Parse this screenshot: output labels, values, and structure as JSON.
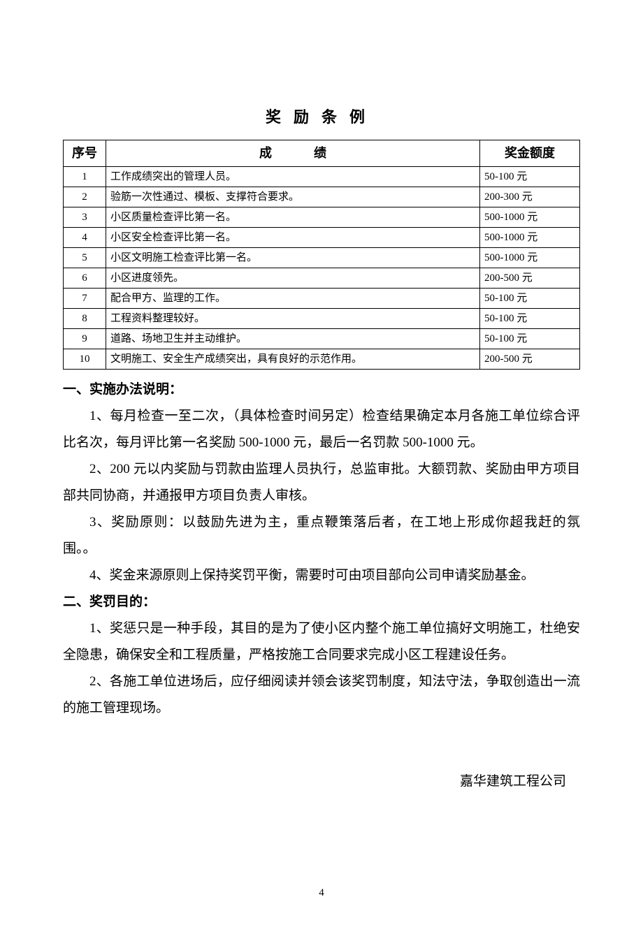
{
  "title": "奖励条例",
  "table": {
    "headers": {
      "idx": "序号",
      "achv": "成绩",
      "amt": "奖金额度"
    },
    "rows": [
      {
        "idx": "1",
        "achv": "工作成绩突出的管理人员。",
        "amt": "50-100 元"
      },
      {
        "idx": "2",
        "achv": "验筋一次性通过、模板、支撑符合要求。",
        "amt": "200-300 元"
      },
      {
        "idx": "3",
        "achv": "小区质量检查评比第一名。",
        "amt": "500-1000 元"
      },
      {
        "idx": "4",
        "achv": "小区安全检查评比第一名。",
        "amt": "500-1000 元"
      },
      {
        "idx": "5",
        "achv": "小区文明施工检查评比第一名。",
        "amt": "500-1000 元"
      },
      {
        "idx": "6",
        "achv": "小区进度领先。",
        "amt": "200-500 元"
      },
      {
        "idx": "7",
        "achv": "配合甲方、监理的工作。",
        "amt": "50-100 元"
      },
      {
        "idx": "8",
        "achv": "工程资料整理较好。",
        "amt": "50-100 元"
      },
      {
        "idx": "9",
        "achv": "道路、场地卫生并主动维护。",
        "amt": "50-100 元"
      },
      {
        "idx": "10",
        "achv": "文明施工、安全生产成绩突出，具有良好的示范作用。",
        "amt": "200-500 元"
      }
    ]
  },
  "section1": {
    "heading": "一、实施办法说明：",
    "p1": "1、每月检查一至二次，（具体检查时间另定）检查结果确定本月各施工单位综合评比名次，每月评比第一名奖励 500-1000 元，最后一名罚款 500-1000 元。",
    "p2": "2、200 元以内奖励与罚款由监理人员执行，总监审批。大额罚款、奖励由甲方项目部共同协商，并通报甲方项目负责人审核。",
    "p3": "3、奖励原则：以鼓励先进为主，重点鞭策落后者，在工地上形成你超我赶的氛围。。",
    "p4": "4、奖金来源原则上保持奖罚平衡，需要时可由项目部向公司申请奖励基金。"
  },
  "section2": {
    "heading": "二、奖罚目的：",
    "p1": "1、奖惩只是一种手段，其目的是为了使小区内整个施工单位搞好文明施工，杜绝安全隐患，确保安全和工程质量，严格按施工合同要求完成小区工程建设任务。",
    "p2": "2、各施工单位进场后，应仔细阅读并领会该奖罚制度，知法守法，争取创造出一流的施工管理现场。"
  },
  "signature": "嘉华建筑工程公司",
  "page_number": "4"
}
